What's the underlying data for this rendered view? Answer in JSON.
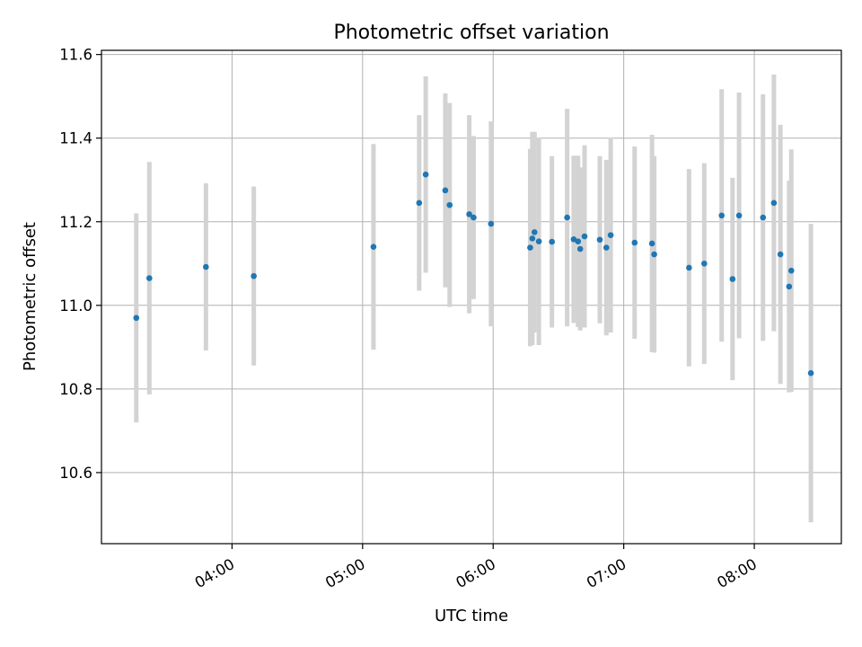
{
  "chart_data": {
    "type": "scatter",
    "title": "Photometric offset variation",
    "xlabel": "UTC time",
    "ylabel": "Photometric offset",
    "grid": true,
    "legend": "none",
    "xlim": [
      "03:00",
      "08:40"
    ],
    "ylim": [
      10.43,
      11.61
    ],
    "x_ticks": [
      "04:00",
      "05:00",
      "06:00",
      "07:00",
      "08:00"
    ],
    "y_ticks": [
      "10.6",
      "10.8",
      "11.0",
      "11.2",
      "11.4",
      "11.6"
    ],
    "colors": {
      "point": "#1f77b4",
      "errorbar": "#d3d3d3",
      "grid": "#b0b0b0"
    },
    "series": [
      {
        "points": [
          {
            "x": "03:16",
            "y": 10.97,
            "yerr": 0.25
          },
          {
            "x": "03:22",
            "y": 11.065,
            "yerr": 0.278
          },
          {
            "x": "03:48",
            "y": 11.092,
            "yerr": 0.2
          },
          {
            "x": "04:10",
            "y": 11.07,
            "yerr": 0.214
          },
          {
            "x": "05:05",
            "y": 11.14,
            "yerr": 0.246
          },
          {
            "x": "05:26",
            "y": 11.245,
            "yerr": 0.21
          },
          {
            "x": "05:29",
            "y": 11.313,
            "yerr": 0.235
          },
          {
            "x": "05:38",
            "y": 11.275,
            "yerr": 0.232
          },
          {
            "x": "05:40",
            "y": 11.24,
            "yerr": 0.244
          },
          {
            "x": "05:49",
            "y": 11.218,
            "yerr": 0.237
          },
          {
            "x": "05:51",
            "y": 11.21,
            "yerr": 0.195
          },
          {
            "x": "05:59",
            "y": 11.195,
            "yerr": 0.245
          },
          {
            "x": "06:17",
            "y": 11.138,
            "yerr": 0.236
          },
          {
            "x": "06:18",
            "y": 11.16,
            "yerr": 0.255
          },
          {
            "x": "06:19",
            "y": 11.175,
            "yerr": 0.24
          },
          {
            "x": "06:21",
            "y": 11.153,
            "yerr": 0.248
          },
          {
            "x": "06:27",
            "y": 11.152,
            "yerr": 0.205
          },
          {
            "x": "06:34",
            "y": 11.21,
            "yerr": 0.26
          },
          {
            "x": "06:37",
            "y": 11.158,
            "yerr": 0.2
          },
          {
            "x": "06:39",
            "y": 11.153,
            "yerr": 0.205
          },
          {
            "x": "06:40",
            "y": 11.135,
            "yerr": 0.195
          },
          {
            "x": "06:42",
            "y": 11.165,
            "yerr": 0.218
          },
          {
            "x": "06:49",
            "y": 11.157,
            "yerr": 0.2
          },
          {
            "x": "06:52",
            "y": 11.138,
            "yerr": 0.21
          },
          {
            "x": "06:54",
            "y": 11.168,
            "yerr": 0.233
          },
          {
            "x": "07:05",
            "y": 11.15,
            "yerr": 0.23
          },
          {
            "x": "07:13",
            "y": 11.148,
            "yerr": 0.26
          },
          {
            "x": "07:14",
            "y": 11.122,
            "yerr": 0.235
          },
          {
            "x": "07:30",
            "y": 11.09,
            "yerr": 0.236
          },
          {
            "x": "07:37",
            "y": 11.1,
            "yerr": 0.24
          },
          {
            "x": "07:45",
            "y": 11.215,
            "yerr": 0.302
          },
          {
            "x": "07:50",
            "y": 11.063,
            "yerr": 0.242
          },
          {
            "x": "07:53",
            "y": 11.215,
            "yerr": 0.294
          },
          {
            "x": "08:04",
            "y": 11.21,
            "yerr": 0.295
          },
          {
            "x": "08:09",
            "y": 11.245,
            "yerr": 0.307
          },
          {
            "x": "08:12",
            "y": 11.122,
            "yerr": 0.31
          },
          {
            "x": "08:16",
            "y": 11.045,
            "yerr": 0.253
          },
          {
            "x": "08:17",
            "y": 11.083,
            "yerr": 0.29
          },
          {
            "x": "08:26",
            "y": 10.838,
            "yerr": 0.357
          }
        ]
      }
    ]
  }
}
